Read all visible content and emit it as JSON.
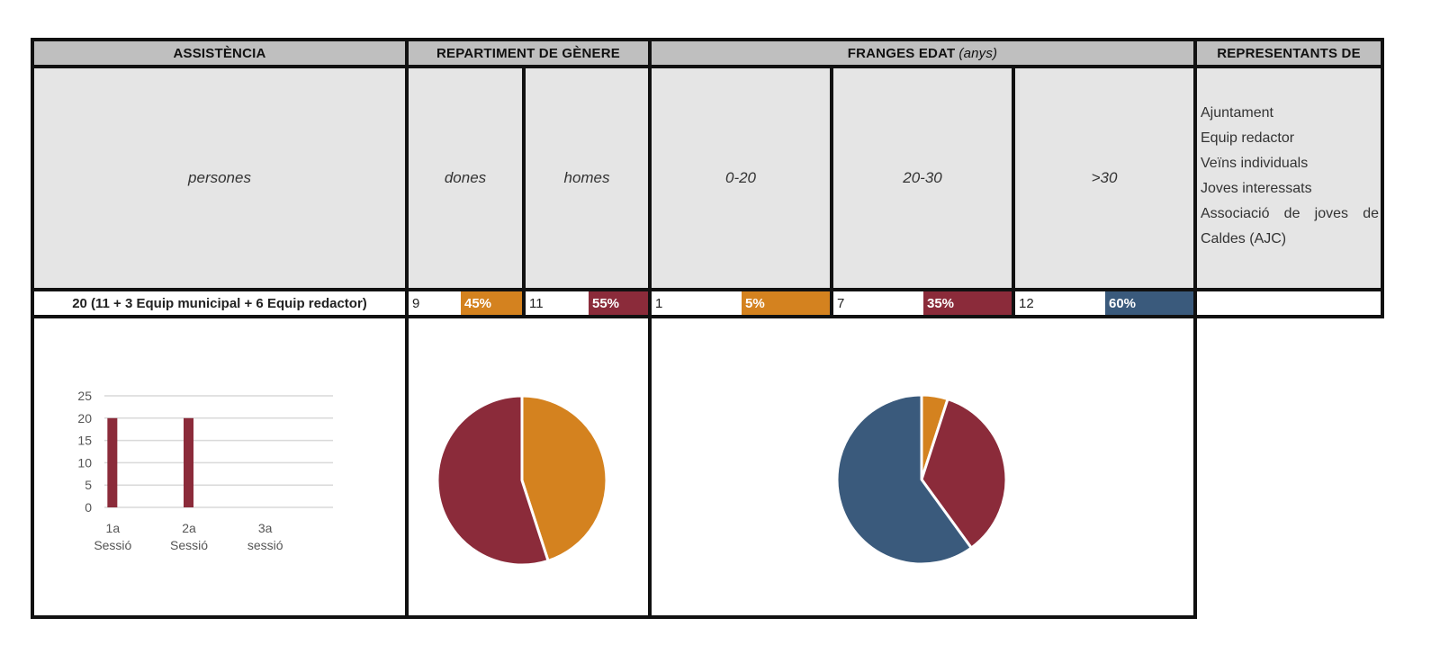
{
  "headers": {
    "assistencia": "ASSISTÈNCIA",
    "genere": "REPARTIMENT DE GÈNERE",
    "franges": "FRANGES EDAT",
    "franges_unit": "(anys)",
    "representants": "REPRESENTANTS DE"
  },
  "subheaders": {
    "persones": "persones",
    "dones": "dones",
    "homes": "homes",
    "age_0_20": "0-20",
    "age_20_30": "20-30",
    "age_30": ">30"
  },
  "representants_list": [
    "Ajuntament",
    "Equip redactor",
    "Veïns individuals",
    "Joves interessats",
    "Associació de joves de",
    "Caldes (AJC)"
  ],
  "values": {
    "total": "20 (11 + 3 Equip municipal + 6 Equip redactor)",
    "dones_n": "9",
    "dones_pct": "45%",
    "homes_n": "11",
    "homes_pct": "55%",
    "age1_n": "1",
    "age1_pct": "5%",
    "age2_n": "7",
    "age2_pct": "35%",
    "age3_n": "12",
    "age3_pct": "60%"
  },
  "colors": {
    "orange": "#d4821f",
    "maroon": "#8b2b3a",
    "blue": "#3a5a7c",
    "header_grey": "#bfbfbf",
    "sub_grey": "#e5e5e5"
  },
  "chart_data": [
    {
      "type": "bar",
      "categories": [
        "1a Sessió",
        "2a Sessió",
        "3a sessió"
      ],
      "category_lines": [
        [
          "1a",
          "Sessió"
        ],
        [
          "2a",
          "Sessió"
        ],
        [
          "3a",
          "sessió"
        ]
      ],
      "values": [
        20,
        20,
        0
      ],
      "ylim": [
        0,
        25
      ],
      "yticks": [
        0,
        5,
        10,
        15,
        20,
        25
      ],
      "grid": true,
      "color": "#8b2b3a"
    },
    {
      "type": "pie",
      "labels": [
        "dones",
        "homes"
      ],
      "values": [
        45,
        55
      ],
      "colors": [
        "#d4821f",
        "#8b2b3a"
      ]
    },
    {
      "type": "pie",
      "labels": [
        "0-20",
        "20-30",
        ">30"
      ],
      "values": [
        5,
        35,
        60
      ],
      "colors": [
        "#d4821f",
        "#8b2b3a",
        "#3a5a7c"
      ]
    }
  ]
}
